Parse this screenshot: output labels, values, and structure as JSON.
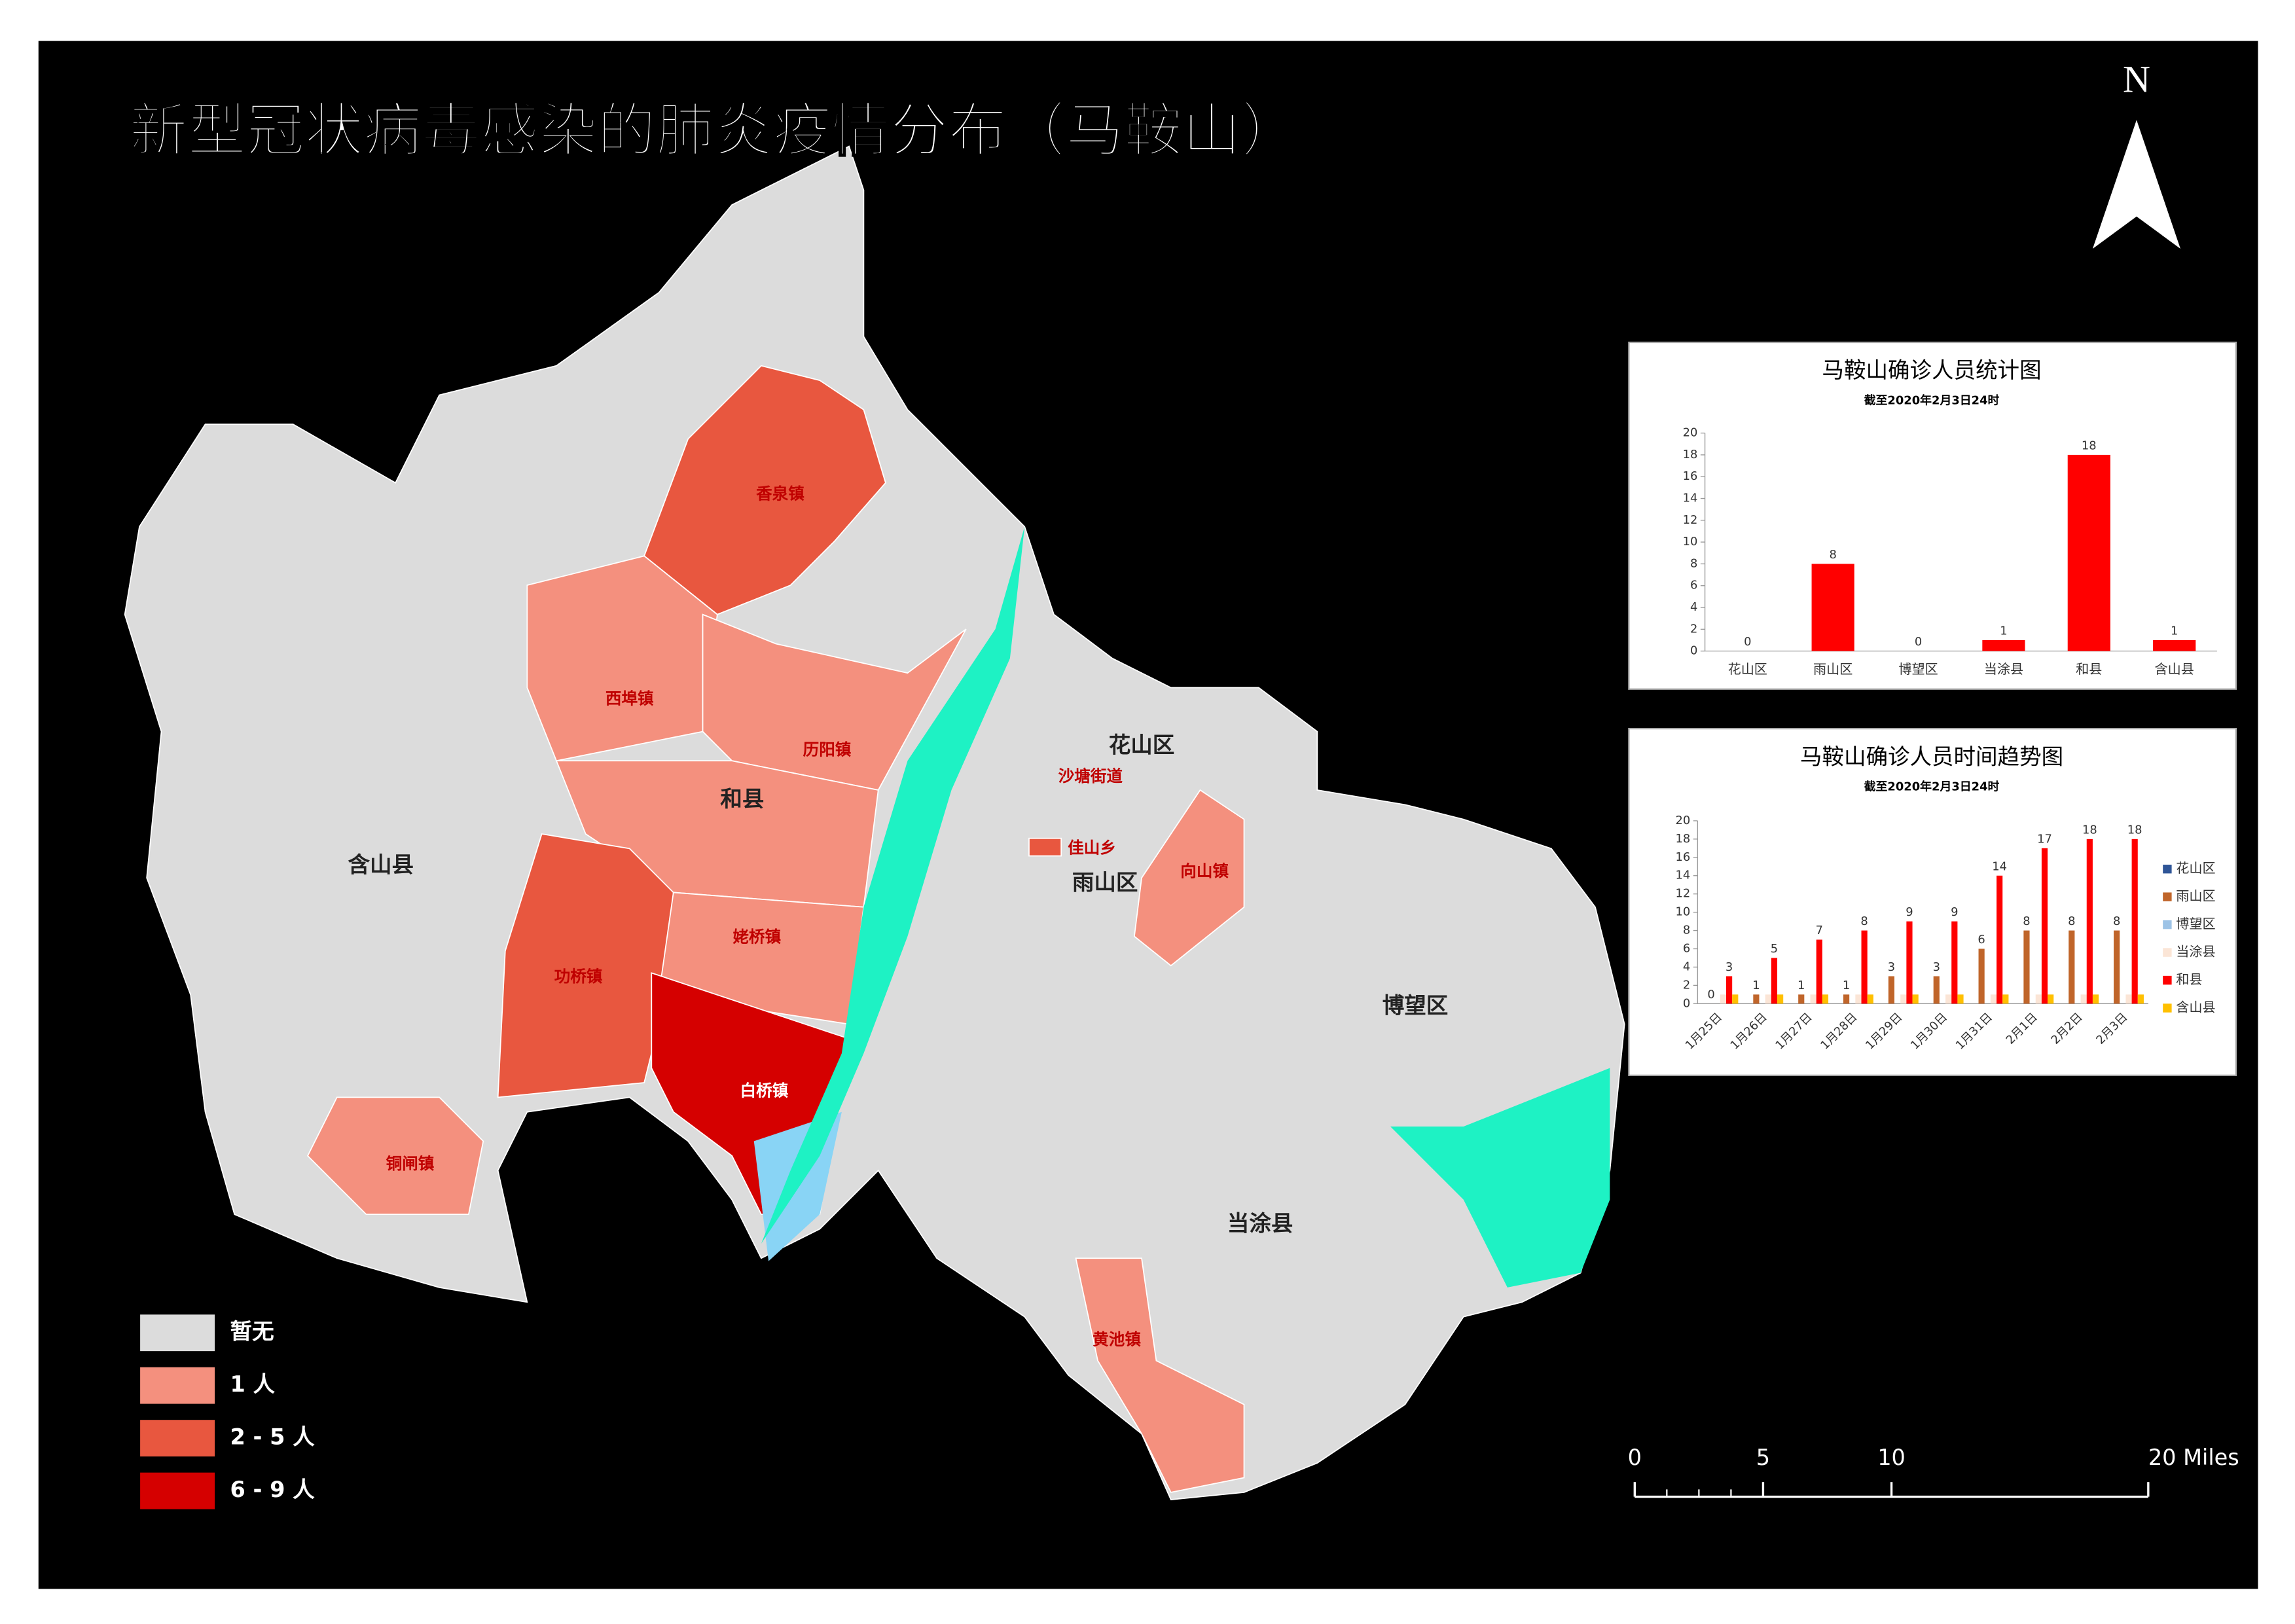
{
  "title": "新型冠状病毒感染的肺炎疫情分布（马鞍山）",
  "north": "N",
  "map_labels": [
    "香泉镇",
    "西埠镇",
    "历阳镇",
    "和县",
    "含山县",
    "功桥镇",
    "姥桥镇",
    "白桥镇",
    "铜闸镇",
    "花山区",
    "沙塘街道",
    "佳山乡",
    "雨山区",
    "向山镇",
    "博望区",
    "当涂县",
    "黄池镇"
  ],
  "legend": [
    {
      "label": "暂无",
      "color": "#dcdcdc"
    },
    {
      "label": "1 人",
      "color": "#f4907e"
    },
    {
      "label": "2 - 5 人",
      "color": "#e8573f"
    },
    {
      "label": "6 - 9 人",
      "color": "#d50000"
    }
  ],
  "scale_bar": {
    "xlim": [
      0,
      20
    ],
    "ticks": [
      0,
      5,
      10,
      {
        "value": 20,
        "label": "20 Miles"
      }
    ]
  },
  "chart_data": [
    {
      "type": "bar",
      "title": "马鞍山确诊人员统计图",
      "subtitle": "截至2020年2月3日24时",
      "categories": [
        "花山区",
        "雨山区",
        "博望区",
        "当涂县",
        "和县",
        "含山县"
      ],
      "values": [
        0,
        8,
        0,
        1,
        18,
        1
      ],
      "color": "#ff0000",
      "data_labels": true,
      "ylim": [
        0,
        20
      ],
      "yticks": [
        0,
        2,
        4,
        6,
        8,
        10,
        12,
        14,
        16,
        18,
        20
      ]
    },
    {
      "type": "bar",
      "title": "马鞍山确诊人员时间趋势图",
      "subtitle": "截至2020年2月3日24时",
      "categories": [
        "1月25日",
        "1月26日",
        "1月27日",
        "1月28日",
        "1月29日",
        "1月30日",
        "1月31日",
        "2月1日",
        "2月2日",
        "2月3日"
      ],
      "series": [
        {
          "name": "花山区",
          "color": "#2f5597",
          "values": [
            0,
            0,
            0,
            0,
            0,
            0,
            0,
            0,
            0,
            0
          ]
        },
        {
          "name": "雨山区",
          "color": "#c0652a",
          "values": [
            0,
            1,
            1,
            1,
            3,
            3,
            6,
            8,
            8,
            8
          ],
          "data_labels": true
        },
        {
          "name": "博望区",
          "color": "#9dc3e6",
          "values": [
            0,
            0,
            0,
            0,
            0,
            0,
            0,
            0,
            0,
            0
          ]
        },
        {
          "name": "当涂县",
          "color": "#fbe5d6",
          "values": [
            1,
            1,
            1,
            1,
            1,
            1,
            1,
            1,
            1,
            1
          ]
        },
        {
          "name": "和县",
          "color": "#ff0000",
          "values": [
            3,
            5,
            7,
            8,
            9,
            9,
            14,
            17,
            18,
            18
          ],
          "data_labels": true
        },
        {
          "name": "含山县",
          "color": "#ffc000",
          "values": [
            1,
            1,
            1,
            1,
            1,
            1,
            1,
            1,
            1,
            1
          ]
        }
      ],
      "ylim": [
        0,
        20
      ],
      "yticks": [
        0,
        2,
        4,
        6,
        8,
        10,
        12,
        14,
        16,
        18,
        20
      ]
    }
  ]
}
